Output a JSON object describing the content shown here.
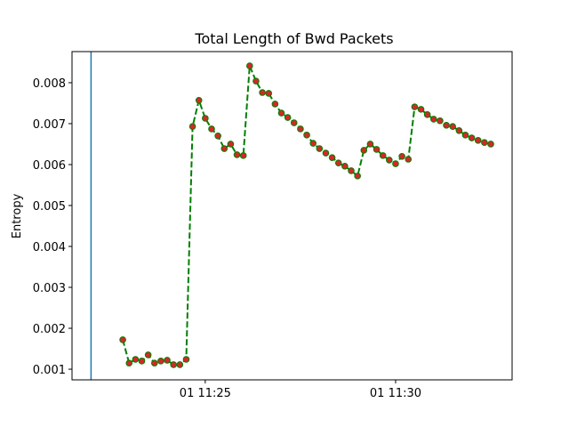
{
  "chart_data": {
    "type": "line",
    "title": "Total Length of Bwd Packets",
    "ylabel": "Entropy",
    "x": [
      22.8333,
      23,
      23.1667,
      23.3333,
      23.5,
      23.6667,
      23.8333,
      24,
      24.1667,
      24.3333,
      24.5,
      24.6667,
      24.8333,
      25,
      25.1667,
      25.3333,
      25.5,
      25.6667,
      25.8333,
      26,
      26.1667,
      26.3333,
      26.5,
      26.6667,
      26.8333,
      27,
      27.1667,
      27.3333,
      27.5,
      27.6667,
      27.8333,
      28,
      28.1667,
      28.3333,
      28.5,
      28.6667,
      28.8333,
      29,
      29.1667,
      29.3333,
      29.5,
      29.6667,
      29.8333,
      30,
      30.1667,
      30.3333,
      30.5,
      30.6667,
      30.8333,
      31,
      31.1667,
      31.3333,
      31.5,
      31.6667,
      31.8333,
      32,
      32.1667,
      32.3333,
      32.5
    ],
    "series": [
      {
        "color": "#008000",
        "marker_color": "#d62728",
        "values": [
          0.00172,
          0.00115,
          0.00124,
          0.0012,
          0.00135,
          0.00115,
          0.0012,
          0.00122,
          0.00111,
          0.00111,
          0.00124,
          0.00693,
          0.00757,
          0.00713,
          0.00687,
          0.0067,
          0.00639,
          0.0065,
          0.00624,
          0.00622,
          0.00841,
          0.00804,
          0.00776,
          0.00774,
          0.00748,
          0.00726,
          0.00715,
          0.00702,
          0.00687,
          0.00672,
          0.00652,
          0.00639,
          0.00628,
          0.00617,
          0.00604,
          0.00596,
          0.00585,
          0.00572,
          0.00635,
          0.0065,
          0.00637,
          0.00622,
          0.00611,
          0.00602,
          0.0062,
          0.00613,
          0.00741,
          0.00735,
          0.00722,
          0.00711,
          0.00707,
          0.00696,
          0.00693,
          0.00683,
          0.00672,
          0.00665,
          0.00659,
          0.00654,
          0.0065
        ]
      }
    ],
    "vline": {
      "x": 22,
      "color": "#1f77b4"
    },
    "xlim": [
      21.5,
      33.06
    ],
    "xticks": [
      {
        "value": 25,
        "label": "01 11:25"
      },
      {
        "value": 30,
        "label": "01 11:30"
      }
    ],
    "ylim": [
      0.00074,
      0.00876
    ],
    "yticks": [
      0.001,
      0.002,
      0.003,
      0.004,
      0.005,
      0.006,
      0.007,
      0.008
    ]
  }
}
